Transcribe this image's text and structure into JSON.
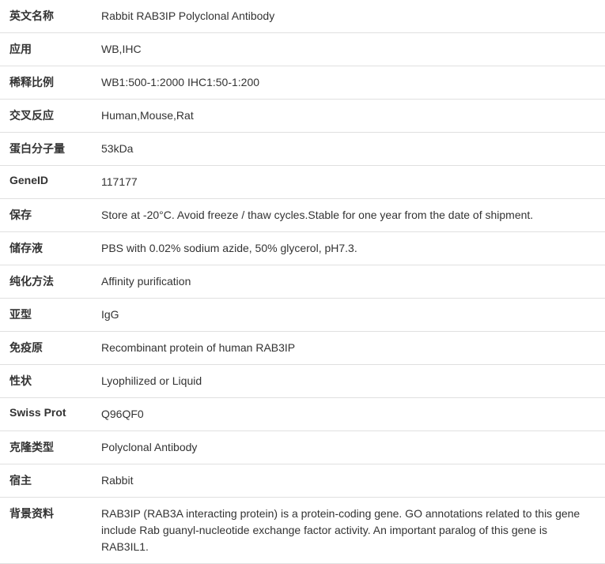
{
  "rows": [
    {
      "label": "英文名称",
      "value": "Rabbit RAB3IP Polyclonal Antibody"
    },
    {
      "label": "应用",
      "value": "WB,IHC"
    },
    {
      "label": "稀释比例",
      "value": "WB1:500-1:2000 IHC1:50-1:200"
    },
    {
      "label": "交叉反应",
      "value": "Human,Mouse,Rat"
    },
    {
      "label": "蛋白分子量",
      "value": "53kDa"
    },
    {
      "label": "GeneID",
      "value": "117177"
    },
    {
      "label": "保存",
      "value": "Store at -20°C. Avoid freeze / thaw cycles.Stable for one year from the date of shipment."
    },
    {
      "label": "储存液",
      "value": "PBS with 0.02% sodium azide, 50% glycerol, pH7.3."
    },
    {
      "label": "纯化方法",
      "value": "Affinity purification"
    },
    {
      "label": "亚型",
      "value": "IgG"
    },
    {
      "label": "免疫原",
      "value": "Recombinant protein of human RAB3IP"
    },
    {
      "label": "性状",
      "value": "Lyophilized or Liquid"
    },
    {
      "label": "Swiss Prot",
      "value": "Q96QF0"
    },
    {
      "label": "克隆类型",
      "value": "Polyclonal Antibody"
    },
    {
      "label": "宿主",
      "value": "Rabbit"
    },
    {
      "label": "背景资料",
      "value": "RAB3IP (RAB3A interacting protein) is a protein-coding gene. GO annotations related to this gene include Rab guanyl-nucleotide exchange factor activity. An important paralog of this gene is RAB3IL1."
    }
  ]
}
